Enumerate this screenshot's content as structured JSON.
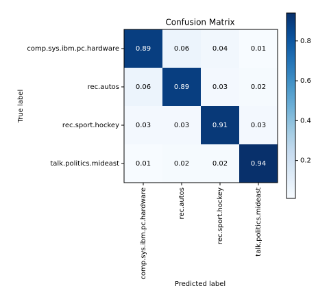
{
  "chart_data": {
    "type": "heatmap",
    "title": "Confusion Matrix",
    "xlabel": "Predicted label",
    "ylabel": "True label",
    "x_categories": [
      "comp.sys.ibm.pc.hardware",
      "rec.autos",
      "rec.sport.hockey",
      "talk.politics.mideast"
    ],
    "y_categories": [
      "comp.sys.ibm.pc.hardware",
      "rec.autos",
      "rec.sport.hockey",
      "talk.politics.mideast"
    ],
    "values": [
      [
        0.89,
        0.06,
        0.04,
        0.01
      ],
      [
        0.06,
        0.89,
        0.03,
        0.02
      ],
      [
        0.03,
        0.03,
        0.91,
        0.03
      ],
      [
        0.01,
        0.02,
        0.02,
        0.94
      ]
    ],
    "colormap": "Blues",
    "clim": [
      0.01,
      0.94
    ],
    "colorbar_ticks": [
      0.2,
      0.4,
      0.6,
      0.8
    ]
  }
}
